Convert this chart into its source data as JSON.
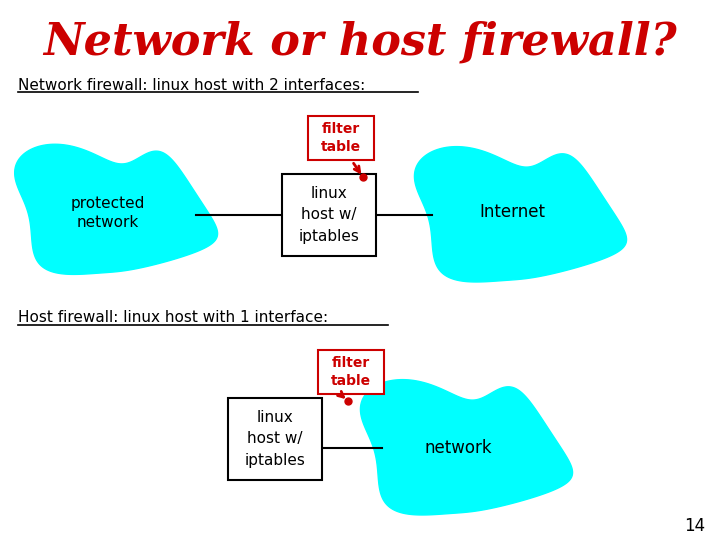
{
  "title": "Network or host firewall?",
  "title_color": "#cc0000",
  "title_fontsize": 32,
  "bg_color": "#ffffff",
  "subtitle1": "Network firewall: linux host with 2 interfaces:",
  "subtitle2": "Host firewall: linux host with 1 interface:",
  "blob_color": "#00ffff",
  "box_color": "#ffffff",
  "box_edge_color": "#000000",
  "filter_box_edge_color": "#cc0000",
  "filter_text_color": "#cc0000",
  "text_color": "#000000",
  "arrow_color": "#cc0000",
  "page_num": "14"
}
